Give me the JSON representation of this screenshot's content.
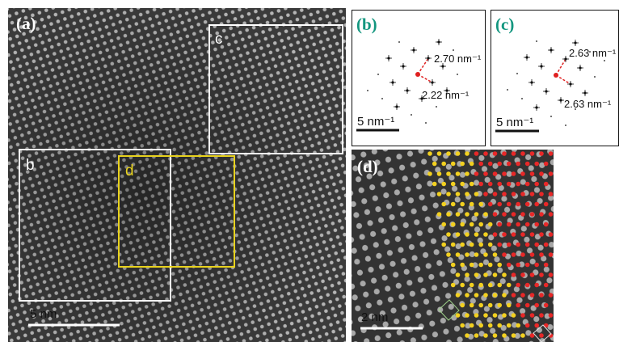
{
  "panels": {
    "a": {
      "label": "(a)",
      "boxes": {
        "c": "c",
        "b": "b",
        "d": "d"
      },
      "scale_bar": "5 nm"
    },
    "b": {
      "label": "(b)",
      "annotations": [
        "2.70 nm⁻¹",
        "2.22 nm⁻¹"
      ],
      "scale_bar": "5 nm⁻¹"
    },
    "c": {
      "label": "(c)",
      "annotations": [
        "2.63 nm⁻¹",
        "2.63 nm⁻¹"
      ],
      "scale_bar": "5 nm⁻¹"
    },
    "d": {
      "label": "(d)",
      "scale_bar": "2 nm"
    }
  }
}
